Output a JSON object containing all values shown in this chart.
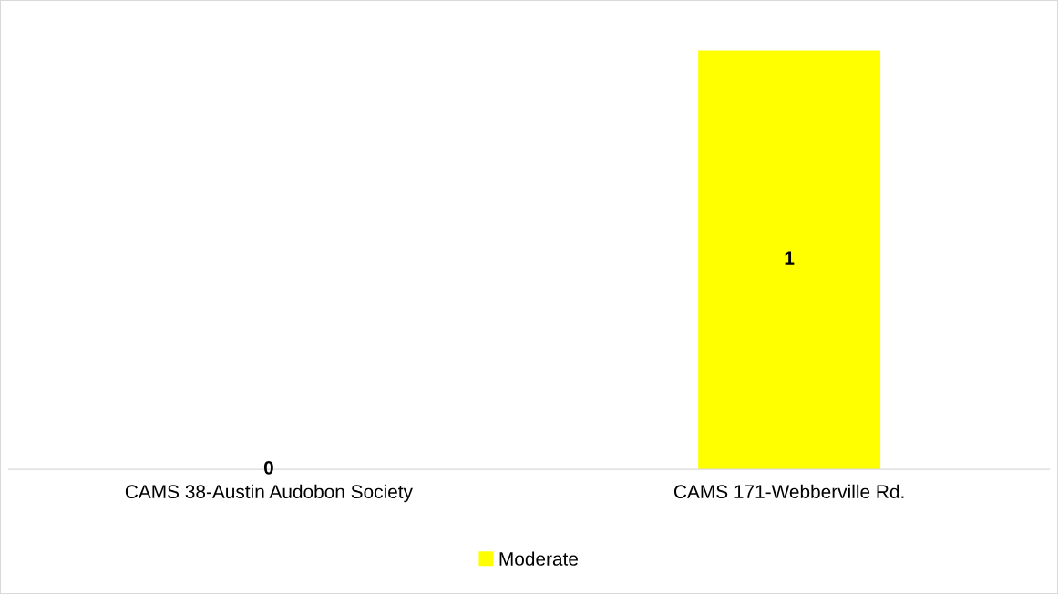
{
  "chart_data": {
    "type": "bar",
    "categories": [
      "CAMS 38-Austin Audobon Society",
      "CAMS 171-Webberville Rd."
    ],
    "series": [
      {
        "name": "Moderate",
        "color": "#ffff00",
        "values": [
          0,
          1
        ]
      }
    ],
    "data_labels": true,
    "legend": "bottom",
    "grid": false
  }
}
